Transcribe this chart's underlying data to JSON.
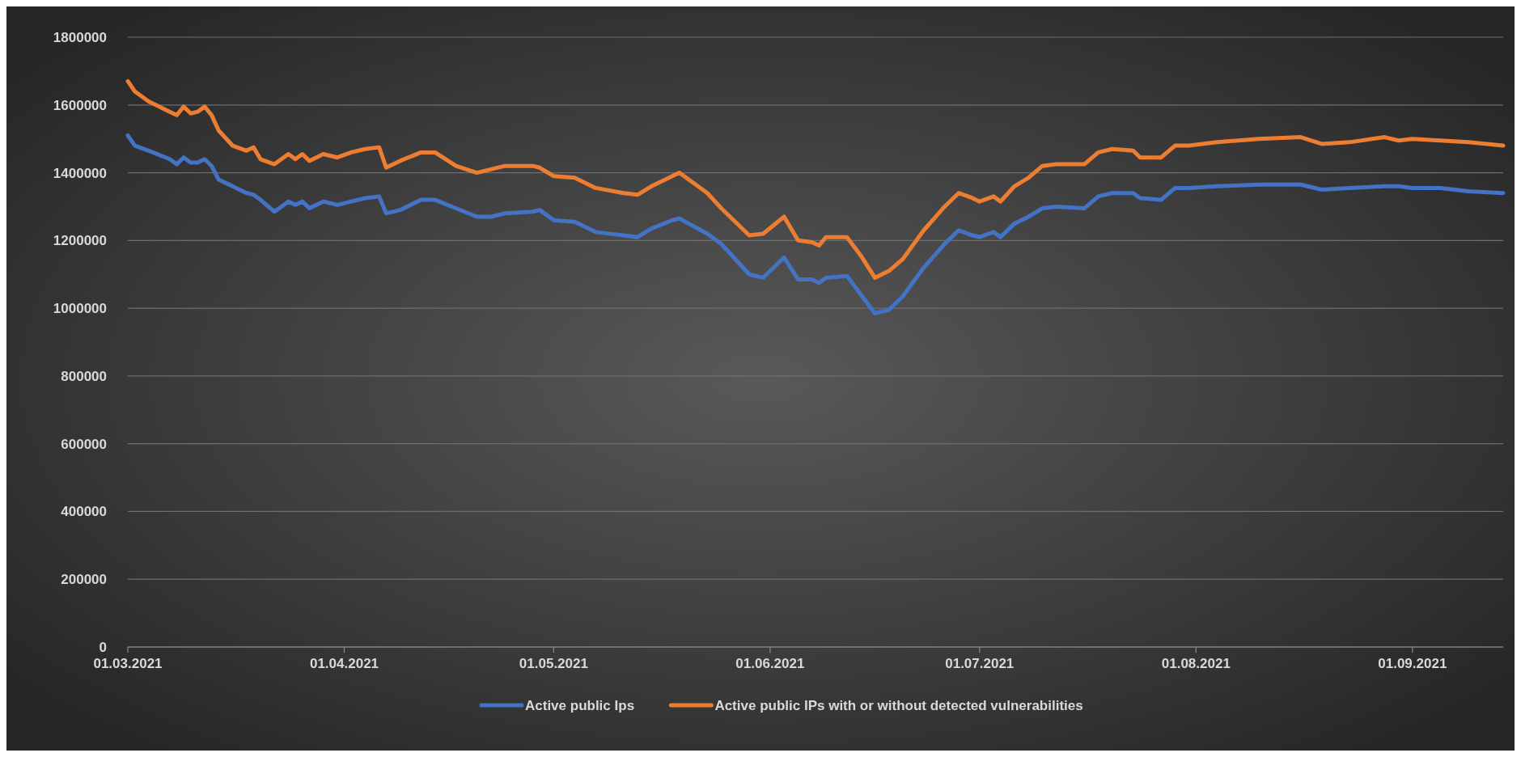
{
  "chart_data": {
    "type": "line",
    "x": [
      "2021-03-01",
      "2021-03-02",
      "2021-03-04",
      "2021-03-07",
      "2021-03-08",
      "2021-03-09",
      "2021-03-10",
      "2021-03-11",
      "2021-03-12",
      "2021-03-13",
      "2021-03-14",
      "2021-03-16",
      "2021-03-18",
      "2021-03-19",
      "2021-03-20",
      "2021-03-22",
      "2021-03-24",
      "2021-03-25",
      "2021-03-26",
      "2021-03-27",
      "2021-03-29",
      "2021-03-31",
      "2021-04-02",
      "2021-04-04",
      "2021-04-06",
      "2021-04-07",
      "2021-04-09",
      "2021-04-12",
      "2021-04-14",
      "2021-04-17",
      "2021-04-20",
      "2021-04-22",
      "2021-04-24",
      "2021-04-28",
      "2021-04-29",
      "2021-05-01",
      "2021-05-04",
      "2021-05-07",
      "2021-05-11",
      "2021-05-13",
      "2021-05-15",
      "2021-05-18",
      "2021-05-19",
      "2021-05-23",
      "2021-05-25",
      "2021-05-29",
      "2021-05-31",
      "2021-06-03",
      "2021-06-05",
      "2021-06-07",
      "2021-06-08",
      "2021-06-09",
      "2021-06-12",
      "2021-06-14",
      "2021-06-16",
      "2021-06-18",
      "2021-06-20",
      "2021-06-23",
      "2021-06-26",
      "2021-06-28",
      "2021-06-30",
      "2021-07-01",
      "2021-07-03",
      "2021-07-04",
      "2021-07-06",
      "2021-07-08",
      "2021-07-10",
      "2021-07-12",
      "2021-07-16",
      "2021-07-18",
      "2021-07-20",
      "2021-07-23",
      "2021-07-24",
      "2021-07-27",
      "2021-07-29",
      "2021-07-31",
      "2021-08-04",
      "2021-08-10",
      "2021-08-16",
      "2021-08-19",
      "2021-08-23",
      "2021-08-28",
      "2021-08-30",
      "2021-09-01",
      "2021-09-05",
      "2021-09-09",
      "2021-09-14"
    ],
    "series": [
      {
        "name": "Active public Ips",
        "color": "#4472c4",
        "values": [
          1510000,
          1480000,
          1465000,
          1440000,
          1425000,
          1445000,
          1430000,
          1430000,
          1440000,
          1420000,
          1380000,
          1360000,
          1340000,
          1335000,
          1320000,
          1285000,
          1315000,
          1305000,
          1315000,
          1295000,
          1315000,
          1305000,
          1315000,
          1325000,
          1330000,
          1280000,
          1290000,
          1320000,
          1320000,
          1295000,
          1270000,
          1270000,
          1280000,
          1285000,
          1290000,
          1260000,
          1255000,
          1225000,
          1215000,
          1210000,
          1235000,
          1260000,
          1265000,
          1220000,
          1190000,
          1100000,
          1090000,
          1150000,
          1085000,
          1085000,
          1075000,
          1090000,
          1095000,
          1040000,
          985000,
          995000,
          1035000,
          1120000,
          1190000,
          1230000,
          1215000,
          1210000,
          1225000,
          1210000,
          1250000,
          1270000,
          1295000,
          1300000,
          1295000,
          1330000,
          1340000,
          1340000,
          1325000,
          1320000,
          1355000,
          1355000,
          1360000,
          1365000,
          1365000,
          1350000,
          1355000,
          1360000,
          1360000,
          1355000,
          1355000,
          1345000,
          1340000
        ]
      },
      {
        "name": "Active public IPs with or without detected vulnerabilities",
        "color": "#ed7d31",
        "values": [
          1670000,
          1640000,
          1610000,
          1580000,
          1570000,
          1595000,
          1575000,
          1580000,
          1595000,
          1570000,
          1525000,
          1480000,
          1465000,
          1475000,
          1440000,
          1425000,
          1455000,
          1440000,
          1455000,
          1435000,
          1455000,
          1445000,
          1460000,
          1470000,
          1475000,
          1415000,
          1435000,
          1460000,
          1460000,
          1420000,
          1400000,
          1410000,
          1420000,
          1420000,
          1415000,
          1390000,
          1385000,
          1355000,
          1340000,
          1335000,
          1360000,
          1390000,
          1400000,
          1340000,
          1295000,
          1215000,
          1220000,
          1270000,
          1200000,
          1195000,
          1185000,
          1210000,
          1210000,
          1155000,
          1090000,
          1110000,
          1145000,
          1230000,
          1300000,
          1340000,
          1325000,
          1315000,
          1330000,
          1315000,
          1360000,
          1385000,
          1420000,
          1425000,
          1425000,
          1460000,
          1470000,
          1465000,
          1445000,
          1445000,
          1480000,
          1480000,
          1490000,
          1500000,
          1505000,
          1485000,
          1490000,
          1505000,
          1495000,
          1500000,
          1495000,
          1490000,
          1480000
        ]
      }
    ],
    "xlim": [
      "2021-03-01",
      "2021-09-14"
    ],
    "xticks": [
      {
        "value": "2021-03-01",
        "label": "01.03.2021"
      },
      {
        "value": "2021-04-01",
        "label": "01.04.2021"
      },
      {
        "value": "2021-05-01",
        "label": "01.05.2021"
      },
      {
        "value": "2021-06-01",
        "label": "01.06.2021"
      },
      {
        "value": "2021-07-01",
        "label": "01.07.2021"
      },
      {
        "value": "2021-08-01",
        "label": "01.08.2021"
      },
      {
        "value": "2021-09-01",
        "label": "01.09.2021"
      }
    ],
    "ylim": [
      0,
      1800000
    ],
    "yticks": [
      0,
      200000,
      400000,
      600000,
      800000,
      1000000,
      1200000,
      1400000,
      1600000,
      1800000
    ],
    "grid": "y",
    "legend": "bottom",
    "marker": "none",
    "line_style": "solid"
  }
}
